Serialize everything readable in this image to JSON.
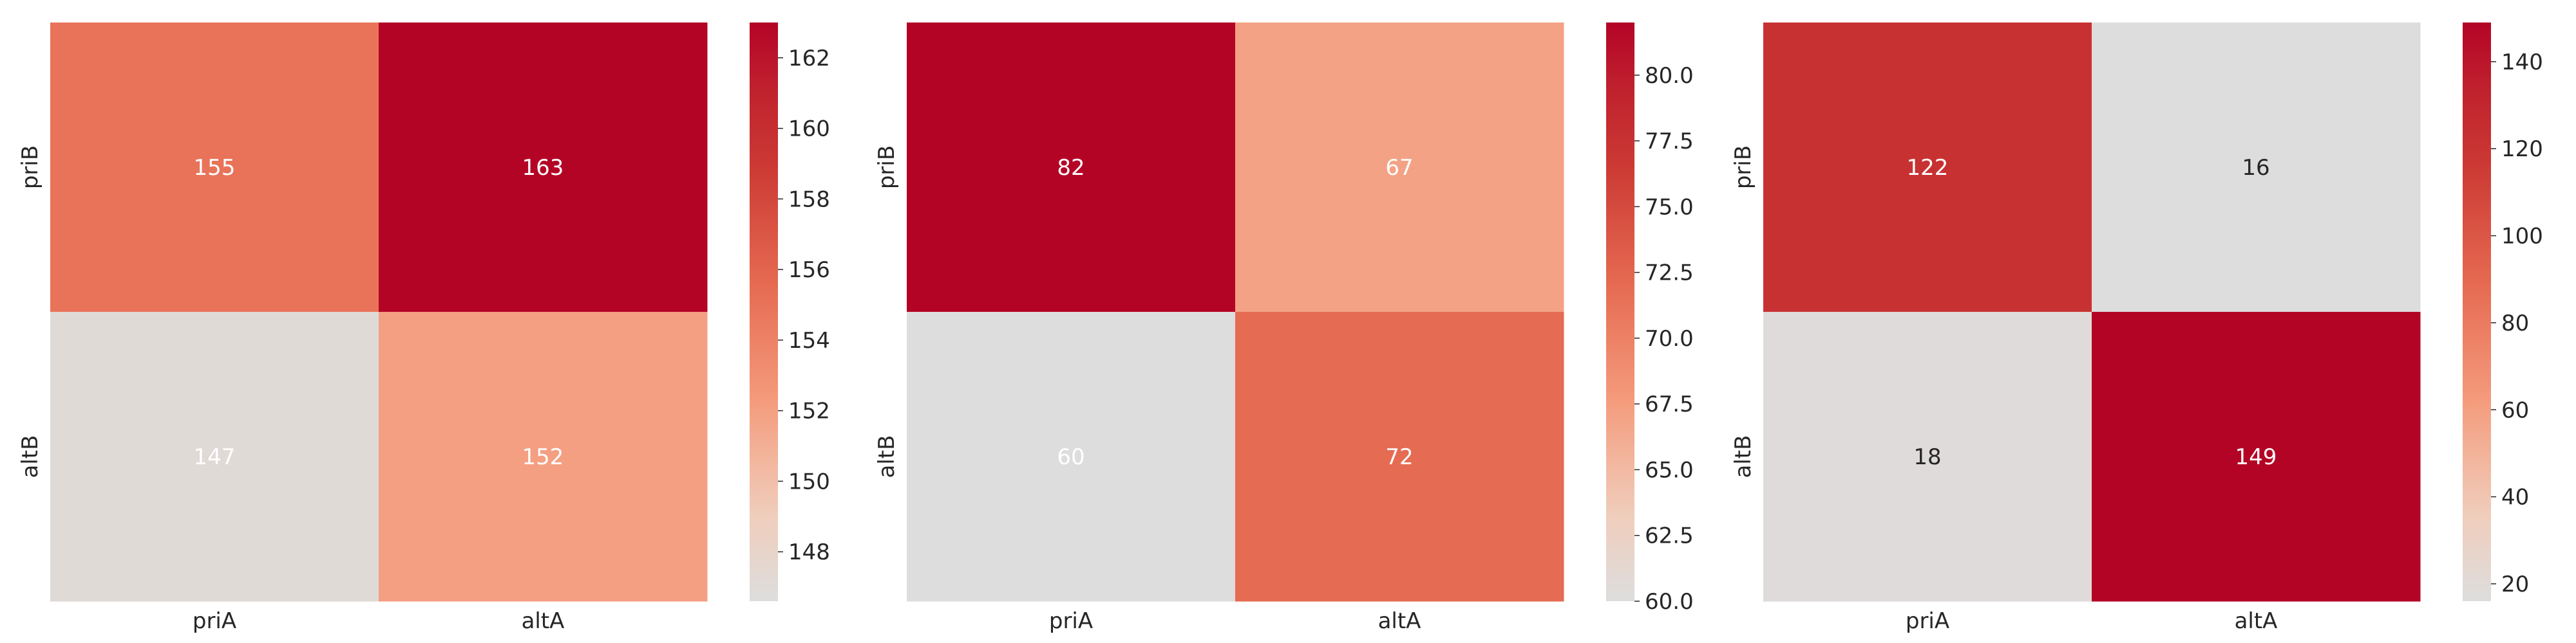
{
  "chart_data": [
    {
      "type": "heatmap",
      "title": "",
      "xlabel": "",
      "ylabel": "",
      "x_categories": [
        "priA",
        "altA"
      ],
      "y_categories": [
        "priB",
        "altB"
      ],
      "values": [
        [
          155,
          163
        ],
        [
          147,
          152
        ]
      ],
      "colorbar": {
        "range": [
          146.6,
          163
        ],
        "ticks": [
          148,
          150,
          152,
          154,
          156,
          158,
          160,
          162
        ],
        "tick_labels": [
          "148",
          "150",
          "152",
          "154",
          "156",
          "158",
          "160",
          "162"
        ]
      },
      "colormap": "coolwarm (upper half)",
      "annot_colors": [
        "#ffffff",
        "#ffffff",
        "#ffffff",
        "#ffffff"
      ]
    },
    {
      "type": "heatmap",
      "title": "",
      "xlabel": "",
      "ylabel": "",
      "x_categories": [
        "priA",
        "altA"
      ],
      "y_categories": [
        "priB",
        "altB"
      ],
      "values": [
        [
          82,
          67
        ],
        [
          60,
          72
        ]
      ],
      "colorbar": {
        "range": [
          60,
          82
        ],
        "ticks": [
          60.0,
          62.5,
          65.0,
          67.5,
          70.0,
          72.5,
          75.0,
          77.5,
          80.0
        ],
        "tick_labels": [
          "60.0",
          "62.5",
          "65.0",
          "67.5",
          "70.0",
          "72.5",
          "75.0",
          "77.5",
          "80.0"
        ]
      },
      "colormap": "coolwarm (upper half)",
      "annot_colors": [
        "#ffffff",
        "#ffffff",
        "#ffffff",
        "#ffffff"
      ]
    },
    {
      "type": "heatmap",
      "title": "",
      "xlabel": "",
      "ylabel": "",
      "x_categories": [
        "priA",
        "altA"
      ],
      "y_categories": [
        "priB",
        "altB"
      ],
      "values": [
        [
          122,
          16
        ],
        [
          18,
          149
        ]
      ],
      "colorbar": {
        "range": [
          16,
          149
        ],
        "ticks": [
          20,
          40,
          60,
          80,
          100,
          120,
          140
        ],
        "tick_labels": [
          "20",
          "40",
          "60",
          "80",
          "100",
          "120",
          "140"
        ]
      },
      "colormap": "coolwarm (upper half)",
      "annot_colors": [
        "#ffffff",
        "#262626",
        "#262626",
        "#ffffff"
      ]
    }
  ]
}
